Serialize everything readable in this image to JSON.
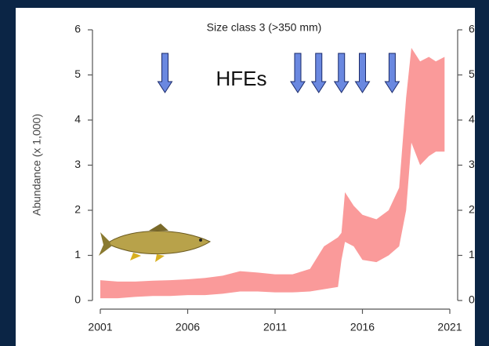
{
  "chart_data": {
    "type": "band",
    "title": "Size class 3 (>350 mm)",
    "y_label": "Abundance (x 1,000)",
    "x": [
      2001,
      2002,
      2003,
      2004,
      2005,
      2006,
      2007,
      2008,
      2009,
      2010,
      2011,
      2012,
      2013,
      2013.8,
      2014.6,
      2014.8,
      2015,
      2015.5,
      2016,
      2016.8,
      2017.5,
      2018.1,
      2018.5,
      2018.8,
      2019.3,
      2019.8,
      2020.2,
      2020.7
    ],
    "lower": [
      0.05,
      0.05,
      0.08,
      0.1,
      0.1,
      0.12,
      0.12,
      0.15,
      0.2,
      0.2,
      0.18,
      0.18,
      0.2,
      0.25,
      0.3,
      0.9,
      1.3,
      1.2,
      0.9,
      0.85,
      1.0,
      1.2,
      2.0,
      3.5,
      3.0,
      3.2,
      3.3,
      3.3
    ],
    "upper": [
      0.45,
      0.42,
      0.42,
      0.44,
      0.45,
      0.47,
      0.5,
      0.55,
      0.65,
      0.62,
      0.58,
      0.58,
      0.7,
      1.2,
      1.4,
      1.5,
      2.4,
      2.1,
      1.9,
      1.8,
      2.0,
      2.5,
      4.5,
      5.6,
      5.3,
      5.4,
      5.3,
      5.4
    ],
    "color": "#fa9a9a",
    "xlim": [
      2001,
      2021
    ],
    "xticks": [
      2001,
      2006,
      2011,
      2016,
      2021
    ],
    "ylim": [
      0,
      6
    ],
    "yticks": [
      0,
      1,
      2,
      3,
      4,
      5,
      6
    ],
    "events": {
      "label": "HFEs",
      "x": [
        2004.7,
        2012.3,
        2013.5,
        2014.8,
        2016.0,
        2017.7
      ],
      "color": "#6a88e0"
    }
  }
}
